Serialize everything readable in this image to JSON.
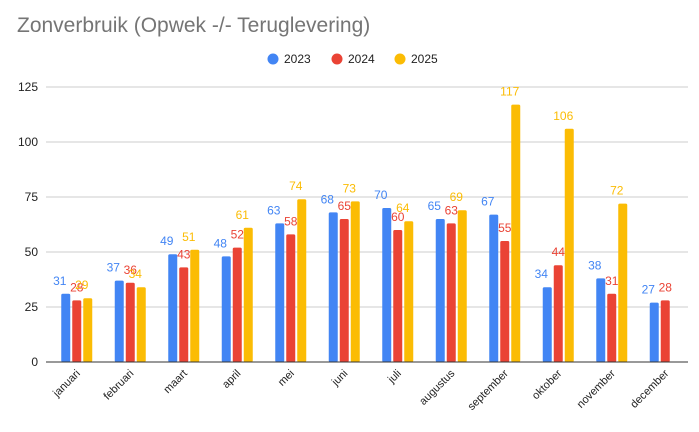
{
  "chart_data": {
    "type": "bar",
    "title": "Zonverbruik (Opwek -/- Teruglevering)",
    "categories": [
      "januari",
      "februari",
      "maart",
      "april",
      "mei",
      "juni",
      "juli",
      "augustus",
      "september",
      "oktober",
      "november",
      "december"
    ],
    "series": [
      {
        "name": "2023",
        "color": "#4285f4",
        "values": [
          31,
          37,
          49,
          48,
          63,
          68,
          70,
          65,
          67,
          34,
          38,
          27
        ]
      },
      {
        "name": "2024",
        "color": "#ea4335",
        "values": [
          28,
          36,
          43,
          52,
          58,
          65,
          60,
          63,
          55,
          44,
          31,
          28
        ]
      },
      {
        "name": "2025",
        "color": "#fbbc04",
        "values": [
          29,
          34,
          51,
          61,
          74,
          73,
          64,
          69,
          117,
          106,
          72,
          null
        ]
      }
    ],
    "yticks": [
      "0",
      "25",
      "50",
      "75",
      "100",
      "125"
    ],
    "ylim": [
      0,
      125
    ],
    "xlabel": "",
    "ylabel": "",
    "grid": true,
    "legend_position": "top-center"
  }
}
